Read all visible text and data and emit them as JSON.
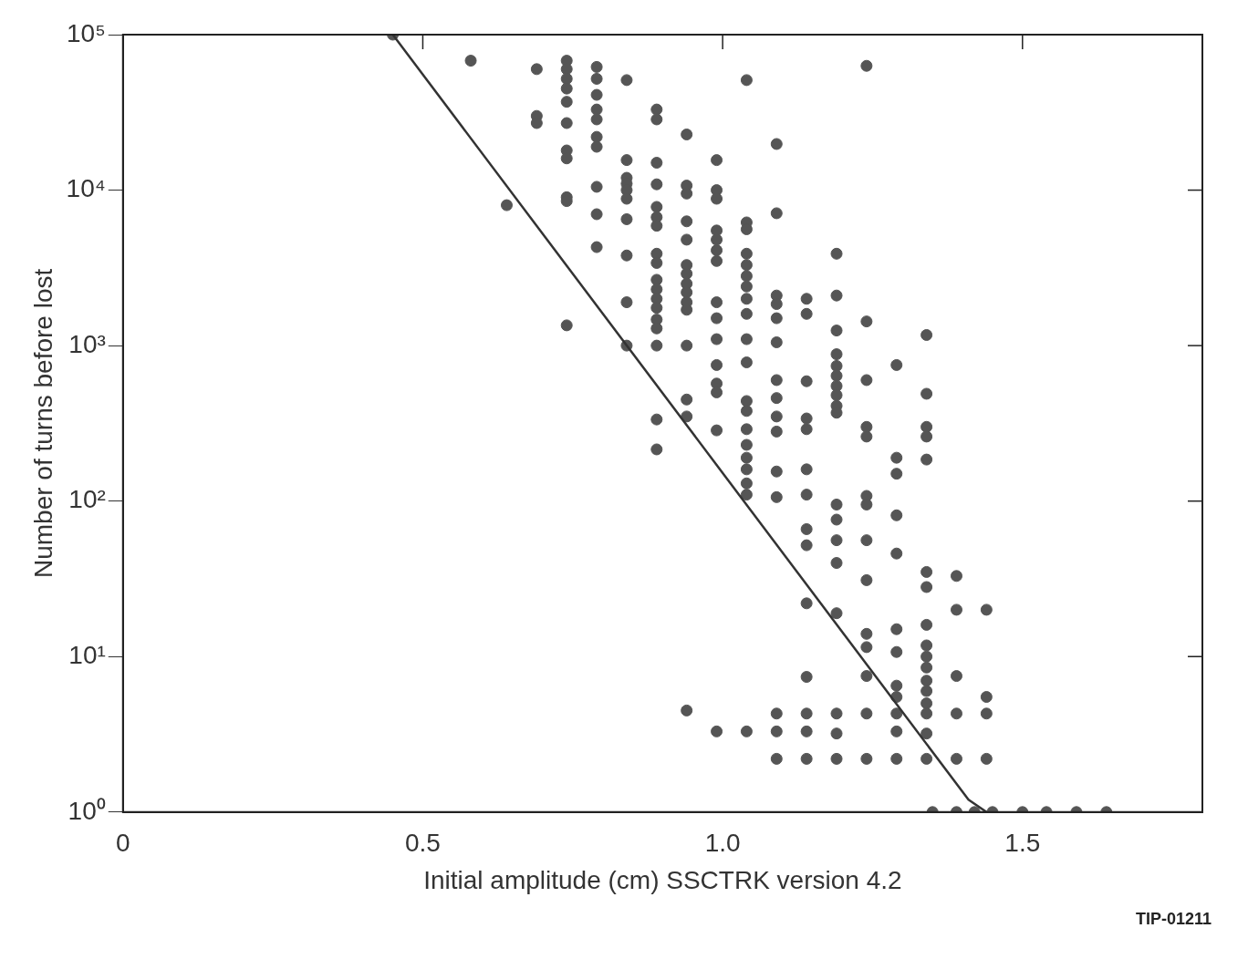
{
  "chart_data": {
    "type": "scatter",
    "xlabel": "Initial amplitude (cm) SSCTRK version 4.2",
    "ylabel": "Number of turns before lost",
    "log": "y",
    "grid": false,
    "legend": false,
    "xlim": [
      0,
      1.8
    ],
    "xticks": [
      0,
      0.5,
      {
        "value": 1,
        "label": "1.0"
      },
      1.5
    ],
    "ylim": [
      1,
      100000
    ],
    "yticks": [
      {
        "value": 1,
        "label": "10⁰"
      },
      {
        "value": 10,
        "label": "10¹"
      },
      {
        "value": 100,
        "label": "10²"
      },
      {
        "value": 1000,
        "label": "10³"
      },
      {
        "value": 10000,
        "label": "10⁴"
      },
      {
        "value": 100000,
        "label": "10⁵"
      }
    ],
    "annotations": [
      "TIP-01211"
    ],
    "series": [
      {
        "marker": "circle",
        "color": "#555555",
        "x": [
          0.45,
          0.58,
          0.64,
          0.69,
          0.69,
          0.69,
          0.74,
          0.74,
          0.74,
          0.74,
          0.74,
          0.74,
          0.74,
          0.74,
          0.74,
          0.74,
          0.74,
          0.79,
          0.79,
          0.79,
          0.79,
          0.79,
          0.79,
          0.79,
          0.79,
          0.79,
          0.79,
          0.84,
          0.84,
          0.84,
          0.84,
          0.84,
          0.84,
          0.84,
          0.84,
          0.84,
          0.84,
          0.89,
          0.89,
          0.89,
          0.89,
          0.89,
          0.89,
          0.89,
          0.89,
          0.89,
          0.89,
          0.89,
          0.89,
          0.89,
          0.89,
          0.89,
          0.89,
          0.89,
          0.89,
          0.94,
          0.94,
          0.94,
          0.94,
          0.94,
          0.94,
          0.94,
          0.94,
          0.94,
          0.94,
          0.94,
          0.94,
          0.94,
          0.94,
          0.94,
          0.99,
          0.99,
          0.99,
          0.99,
          0.99,
          0.99,
          0.99,
          0.99,
          0.99,
          0.99,
          0.99,
          0.99,
          0.99,
          0.99,
          0.99,
          1.04,
          1.04,
          1.04,
          1.04,
          1.04,
          1.04,
          1.04,
          1.04,
          1.04,
          1.04,
          1.04,
          1.04,
          1.04,
          1.04,
          1.04,
          1.04,
          1.04,
          1.04,
          1.04,
          1.04,
          1.09,
          1.09,
          1.09,
          1.09,
          1.09,
          1.09,
          1.09,
          1.09,
          1.09,
          1.09,
          1.09,
          1.09,
          1.09,
          1.09,
          1.09,
          1.14,
          1.14,
          1.14,
          1.14,
          1.14,
          1.14,
          1.14,
          1.14,
          1.14,
          1.14,
          1.14,
          1.14,
          1.14,
          1.14,
          1.19,
          1.19,
          1.19,
          1.19,
          1.19,
          1.19,
          1.19,
          1.19,
          1.19,
          1.19,
          1.19,
          1.19,
          1.19,
          1.19,
          1.19,
          1.19,
          1.19,
          1.19,
          1.24,
          1.24,
          1.24,
          1.24,
          1.24,
          1.24,
          1.24,
          1.24,
          1.24,
          1.24,
          1.24,
          1.24,
          1.24,
          1.24,
          1.29,
          1.29,
          1.29,
          1.29,
          1.29,
          1.29,
          1.29,
          1.29,
          1.29,
          1.29,
          1.29,
          1.29,
          1.34,
          1.34,
          1.34,
          1.34,
          1.34,
          1.34,
          1.34,
          1.34,
          1.34,
          1.34,
          1.34,
          1.34,
          1.34,
          1.34,
          1.34,
          1.34,
          1.34,
          1.35,
          1.39,
          1.39,
          1.39,
          1.39,
          1.39,
          1.39,
          1.42,
          1.44,
          1.44,
          1.44,
          1.44,
          1.45,
          1.5,
          1.54,
          1.59,
          1.64
        ],
        "values": [
          100000,
          68000,
          8000,
          60000,
          30000,
          27000,
          68000,
          60000,
          52000,
          45000,
          37000,
          27000,
          18000,
          16000,
          9000,
          8500,
          1350,
          62000,
          52000,
          41000,
          33000,
          28500,
          22000,
          19000,
          10500,
          7000,
          4300,
          51000,
          15600,
          12000,
          11000,
          10000,
          8800,
          6500,
          3800,
          1900,
          1000,
          33000,
          28500,
          15000,
          10900,
          7800,
          6700,
          5900,
          3900,
          3400,
          2650,
          2300,
          2000,
          1750,
          1470,
          1290,
          1000,
          335,
          215,
          22800,
          10700,
          9500,
          6300,
          4800,
          3300,
          2900,
          2500,
          2200,
          1900,
          1700,
          1000,
          450,
          350,
          4.5,
          15600,
          10000,
          8800,
          5500,
          4800,
          4100,
          3500,
          1900,
          1500,
          1100,
          750,
          570,
          500,
          285,
          3.3,
          51000,
          6200,
          5600,
          3900,
          3300,
          2800,
          2400,
          2000,
          1600,
          1100,
          780,
          440,
          380,
          290,
          230,
          190,
          160,
          130,
          110,
          3.3,
          19800,
          7100,
          2100,
          1850,
          1500,
          1050,
          600,
          460,
          350,
          280,
          155,
          106,
          4.3,
          3.3,
          2.2,
          2000,
          1600,
          590,
          340,
          290,
          160,
          110,
          66,
          52,
          22,
          7.4,
          4.3,
          3.3,
          2.2,
          3900,
          2100,
          1250,
          880,
          740,
          640,
          550,
          480,
          410,
          370,
          95,
          76,
          56,
          40,
          19,
          4.3,
          3.2,
          2.2,
          63000,
          1430,
          600,
          300,
          260,
          108,
          95,
          56,
          31,
          14,
          11.5,
          7.5,
          4.3,
          2.2,
          750,
          190,
          150,
          81,
          46,
          15,
          10.7,
          6.5,
          5.5,
          4.3,
          3.3,
          2.2,
          1170,
          490,
          300,
          260,
          185,
          35,
          28,
          16,
          11.8,
          10,
          8.5,
          7,
          6,
          5,
          4.3,
          3.2,
          2.2,
          1,
          33,
          20,
          7.5,
          4.3,
          2.2,
          1,
          1,
          20,
          5.5,
          4.3,
          2.2,
          1,
          1,
          1,
          1,
          1
        ]
      },
      {
        "type": "line",
        "color": "#333333",
        "x": [
          0.45,
          1.41,
          1.44
        ],
        "values": [
          100000,
          1.2,
          1
        ]
      }
    ]
  }
}
